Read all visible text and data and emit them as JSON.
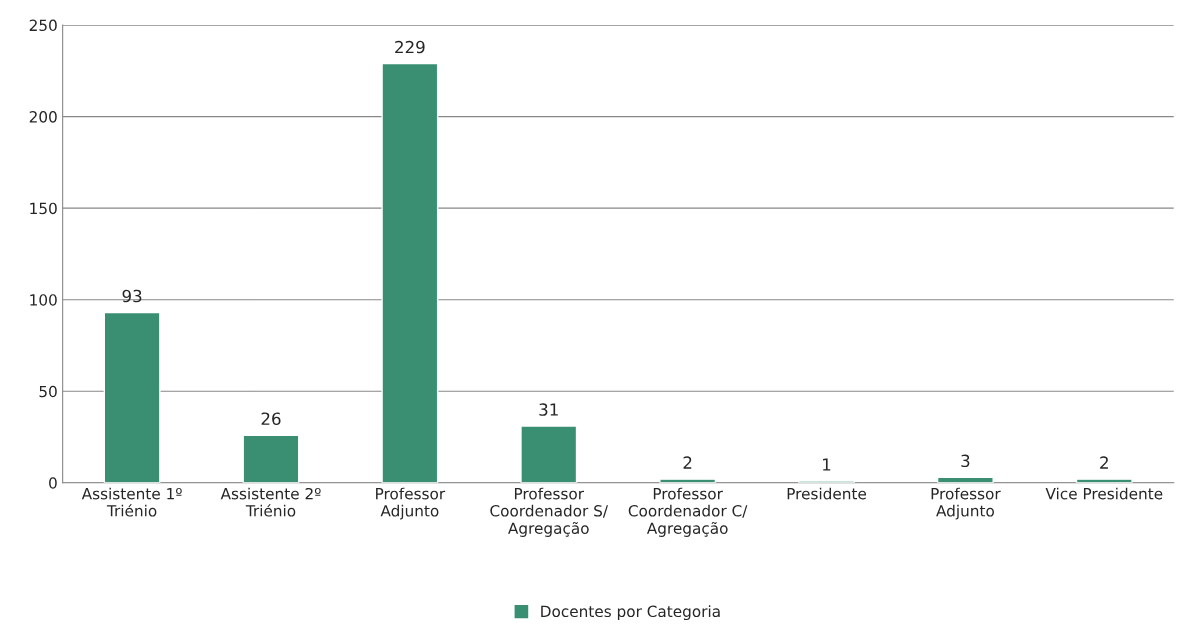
{
  "chart_data": {
    "type": "bar",
    "categories": [
      "Assistente 1º\nTriénio",
      "Assistente 2º\nTriénio",
      "Professor\nAdjunto",
      "Professor\nCoordenador S/\nAgregação",
      "Professor\nCoordenador C/\nAgregação",
      "Presidente",
      "Professor\nAdjunto",
      "Vice Presidente"
    ],
    "series": [
      {
        "name": "Docentes por Categoria",
        "color": "#3a8f72",
        "values": [
          93,
          26,
          229,
          31,
          2,
          1,
          3,
          2
        ]
      }
    ],
    "ylim": [
      0,
      250
    ],
    "yticks": [
      0,
      50,
      100,
      150,
      200,
      250
    ],
    "grid": "y",
    "legend": "bottom",
    "data_labels": true
  }
}
